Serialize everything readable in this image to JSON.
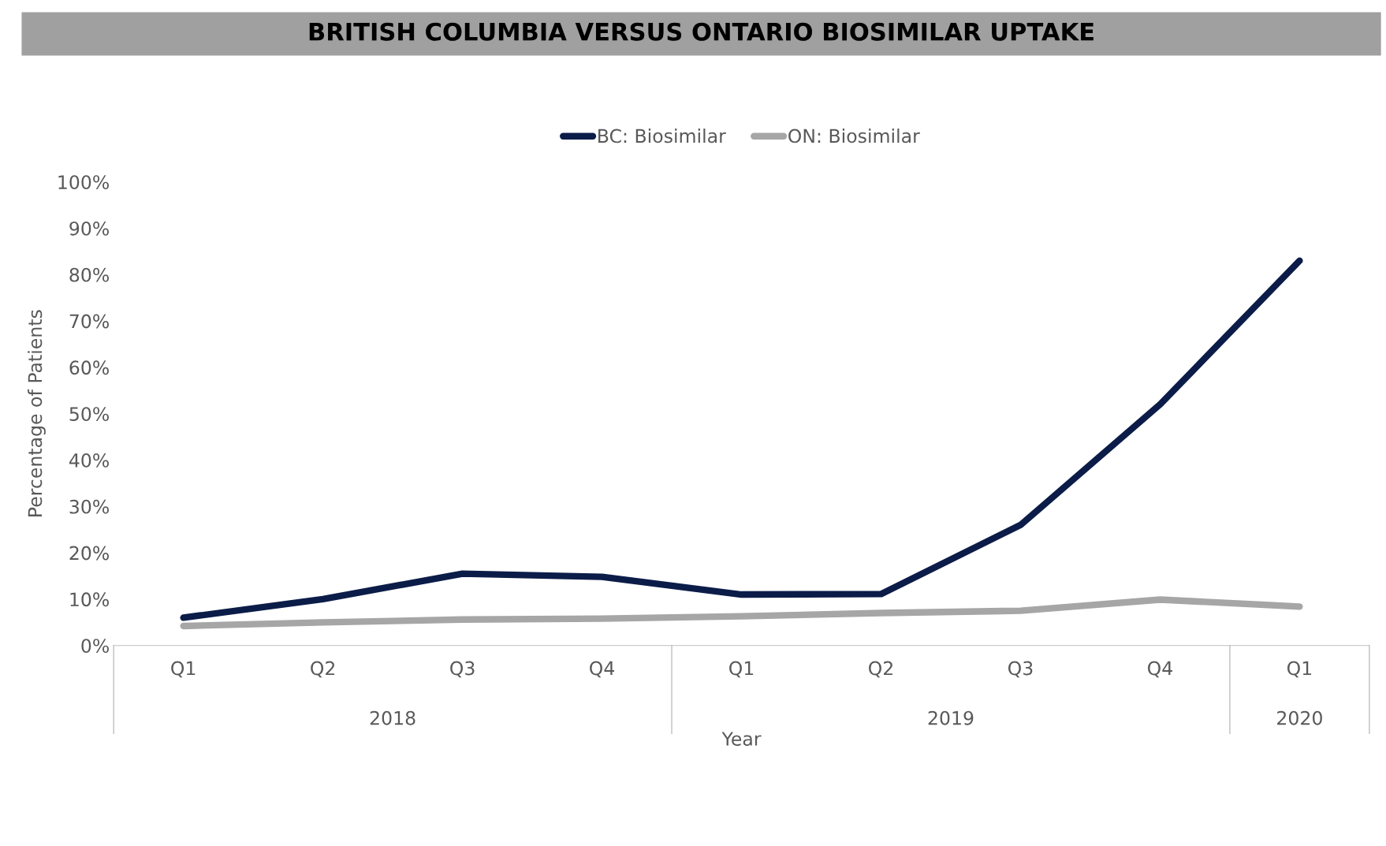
{
  "chart_data": {
    "type": "line",
    "title": "BRITISH COLUMBIA VERSUS ONTARIO BIOSIMILAR UPTAKE",
    "xlabel": "Year",
    "ylabel": "Percentage of Patients",
    "categories": [
      "Q1",
      "Q2",
      "Q3",
      "Q4",
      "Q1",
      "Q2",
      "Q3",
      "Q4",
      "Q1"
    ],
    "annotations": [
      "2018",
      "2019",
      "2020"
    ],
    "series": [
      {
        "name": "BC: Biosimilar",
        "color": "#0b1c48",
        "values": [
          6,
          10,
          15.5,
          14.8,
          11,
          11.1,
          26,
          52,
          83
        ]
      },
      {
        "name": "ON: Biosimilar",
        "color": "#a6a6a6",
        "values": [
          4.2,
          5,
          5.6,
          5.8,
          6.3,
          7,
          7.5,
          9.9,
          8.4
        ]
      }
    ],
    "ylim": [
      0,
      100
    ],
    "yticks": [
      {
        "value": 0,
        "label": "0%"
      },
      {
        "value": 10,
        "label": "10%"
      },
      {
        "value": 20,
        "label": "20%"
      },
      {
        "value": 30,
        "label": "30%"
      },
      {
        "value": 40,
        "label": "40%"
      },
      {
        "value": 50,
        "label": "50%"
      },
      {
        "value": 60,
        "label": "60%"
      },
      {
        "value": 70,
        "label": "70%"
      },
      {
        "value": 80,
        "label": "80%"
      },
      {
        "value": 90,
        "label": "90%"
      },
      {
        "value": 100,
        "label": "100%"
      }
    ],
    "grid": false,
    "legend": "top",
    "marker": "none",
    "line_style": "solid"
  }
}
